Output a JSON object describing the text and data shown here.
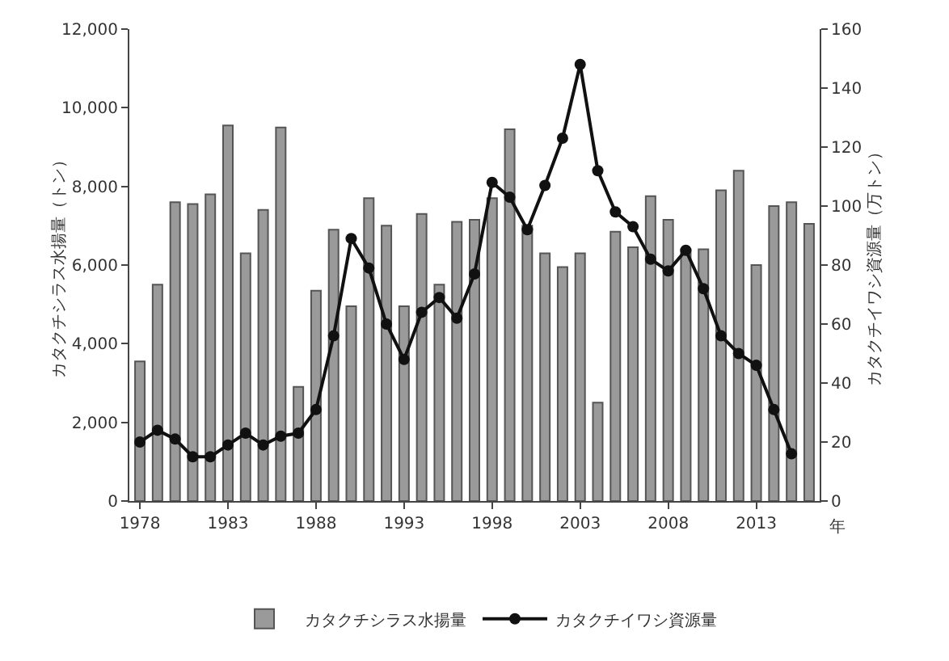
{
  "chart_data": {
    "type": "bar",
    "categories": [
      "1978",
      null,
      null,
      null,
      null,
      "1983",
      null,
      null,
      null,
      null,
      "1988",
      null,
      null,
      null,
      null,
      "1993",
      null,
      null,
      null,
      null,
      "1998",
      null,
      null,
      null,
      null,
      "2003",
      null,
      null,
      null,
      null,
      "2008",
      null,
      null,
      null,
      null,
      "2013",
      null,
      null,
      null
    ],
    "xlabel": "年",
    "ylabel": "カタクチシラス水揚量（トン）",
    "y2label": "カタクチイワシ資源量（万トン）",
    "series": [
      {
        "name": "カタクチシラス水揚量",
        "color": "#9a9a9a",
        "values": [
          3550,
          5500,
          7600,
          7550,
          7800,
          9550,
          6300,
          7400,
          9500,
          2900,
          5350,
          6900,
          4950,
          7700,
          7000,
          4950,
          7300,
          5500,
          7100,
          7150,
          7700,
          9450,
          7000,
          6300,
          5950,
          6300,
          2500,
          6850,
          6450,
          7750,
          7150,
          6400,
          6400,
          7900,
          8400,
          6000,
          7500,
          7600,
          7050
        ]
      },
      {
        "name": "カタクチイワシ資源量",
        "type": "line",
        "axis": "y2",
        "color": "#111111",
        "marker": "circle",
        "line_style": "solid",
        "values": [
          20,
          24,
          21,
          15,
          15,
          19,
          23,
          19,
          22,
          23,
          31,
          56,
          89,
          79,
          60,
          48,
          64,
          69,
          62,
          77,
          108,
          103,
          92,
          107,
          123,
          148,
          112,
          98,
          93,
          82,
          78,
          85,
          72,
          56,
          50,
          46,
          31,
          16,
          null
        ]
      }
    ],
    "ylim": [
      0,
      12000
    ],
    "yticks": [
      0,
      {
        "value": 2000,
        "label": "2,000"
      },
      {
        "value": 4000,
        "label": "4,000"
      },
      {
        "value": 6000,
        "label": "6,000"
      },
      {
        "value": 8000,
        "label": "8,000"
      },
      {
        "value": 10000,
        "label": "10,000"
      },
      {
        "value": 12000,
        "label": "12,000"
      }
    ],
    "y2lim": [
      0,
      160
    ],
    "y2ticks": [
      0,
      20,
      40,
      60,
      80,
      100,
      120,
      140,
      160
    ],
    "grid": false,
    "legend": "bottom"
  }
}
